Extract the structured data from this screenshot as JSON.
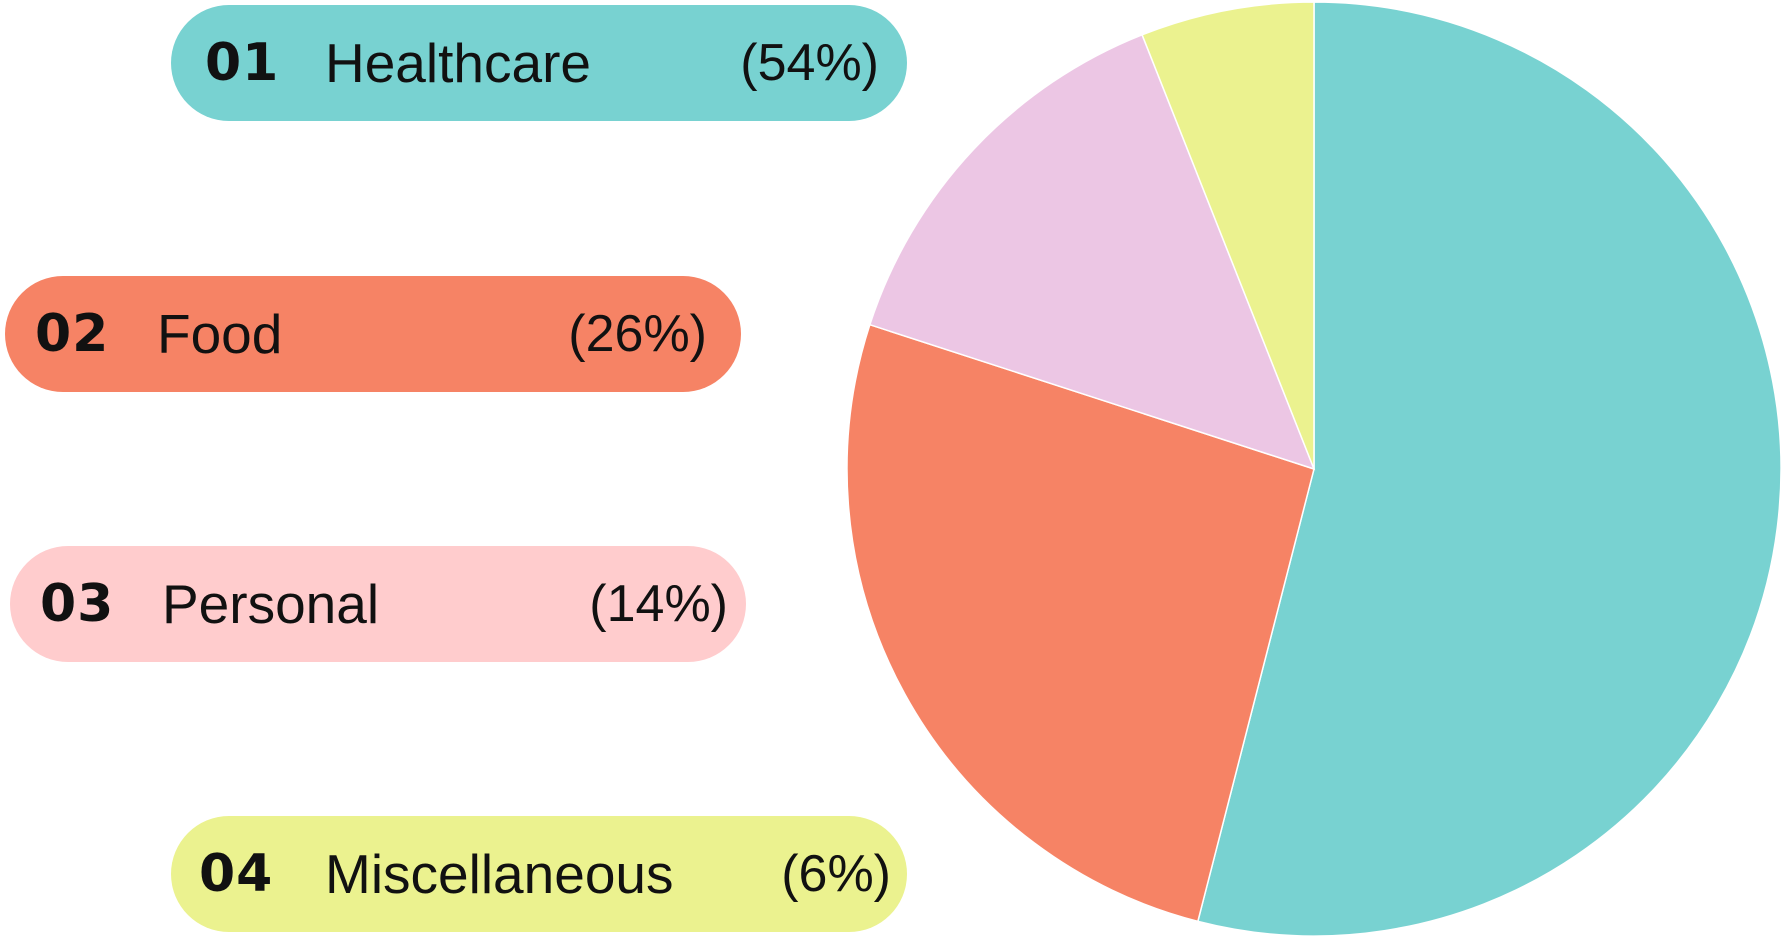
{
  "chart_data": {
    "type": "pie",
    "categories": [
      "Healthcare",
      "Food",
      "Personal",
      "Miscellaneous"
    ],
    "values": [
      54,
      26,
      14,
      6
    ],
    "colors": [
      "#78d2d1",
      "#f68365",
      "#ecc6e4",
      "#ebf28f"
    ],
    "legend": {
      "placement": "left",
      "items": [
        {
          "num": "01",
          "label": "Healthcare",
          "pct": "(54%)",
          "color": "#78d2d1"
        },
        {
          "num": "02",
          "label": "Food",
          "pct": "(26%)",
          "color": "#f68365"
        },
        {
          "num": "03",
          "label": "Personal",
          "pct": "(14%)",
          "color": "#ffcccd"
        },
        {
          "num": "04",
          "label": "Miscellaneous",
          "pct": "(6%)",
          "color": "#ebf28f"
        }
      ]
    }
  }
}
